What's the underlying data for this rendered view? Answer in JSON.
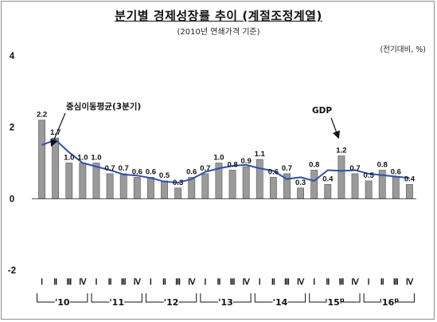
{
  "header": {
    "title": "분기별 경제성장률 추이 (계절조정계열)",
    "subtitle": "(2010년 연쇄가격 기준)",
    "unit": "(전기대비, %)"
  },
  "chart_data": {
    "type": "bar",
    "title": "분기별 경제성장률 추이 (계절조정계열)",
    "subtitle": "(2010년 연쇄가격 기준)",
    "unit": "(전기대비, %)",
    "ylim": [
      -2,
      4
    ],
    "yticks": [
      4,
      2,
      0,
      -2
    ],
    "grid": false,
    "quarter_labels": [
      "Ⅰ",
      "Ⅱ",
      "Ⅲ",
      "Ⅳ",
      "Ⅰ",
      "Ⅱ",
      "Ⅲ",
      "Ⅳ",
      "Ⅰ",
      "Ⅱ",
      "Ⅲ",
      "Ⅳ",
      "Ⅰ",
      "Ⅱ",
      "Ⅲ",
      "Ⅳ",
      "Ⅰ",
      "Ⅱ",
      "Ⅲ",
      "Ⅳ",
      "Ⅰ",
      "Ⅱ",
      "Ⅲ",
      "Ⅳ",
      "Ⅰ",
      "Ⅱ",
      "Ⅲ",
      "Ⅳ"
    ],
    "year_labels": [
      "'10",
      "'11",
      "'12",
      "'13",
      "'14",
      "'15",
      "'16"
    ],
    "year_label_suffix": [
      "",
      "",
      "",
      "",
      "",
      "p",
      "p"
    ],
    "series": [
      {
        "name": "GDP",
        "kind": "bar",
        "values": [
          2.2,
          1.7,
          1.0,
          1.0,
          1.0,
          0.7,
          0.7,
          0.6,
          0.6,
          0.5,
          0.3,
          0.6,
          0.7,
          1.0,
          0.8,
          0.9,
          1.1,
          0.6,
          0.7,
          0.3,
          0.8,
          0.4,
          1.2,
          0.7,
          0.5,
          0.8,
          0.6,
          0.4
        ]
      },
      {
        "name": "중심이동평균(3분기)",
        "kind": "line",
        "values": [
          1.5,
          1.65,
          1.3,
          1.0,
          0.9,
          0.8,
          0.68,
          0.65,
          0.58,
          0.48,
          0.45,
          0.55,
          0.75,
          0.85,
          0.92,
          0.95,
          0.85,
          0.78,
          0.55,
          0.6,
          0.5,
          0.8,
          0.78,
          0.8,
          0.7,
          0.66,
          0.62,
          0.58
        ]
      }
    ],
    "annotations": [
      {
        "text": "중심이동평균(3분기)",
        "target": "line"
      },
      {
        "text": "GDP",
        "target": "bar"
      }
    ]
  }
}
